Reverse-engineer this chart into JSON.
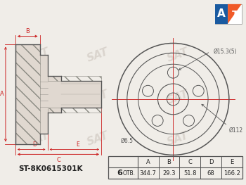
{
  "bg_color": "#f0ede8",
  "title_part_number": "ST-8K0615301K",
  "holes_label": "6 ОТВ.",
  "col_headers": [
    "A",
    "B",
    "C",
    "D",
    "E"
  ],
  "col_values": [
    "344.7",
    "29.3",
    "51.8",
    "68",
    "166.2"
  ],
  "dim_labels": {
    "bolt_circle": "Ø112",
    "center_hole": "Ø6.5",
    "outer_bolt": "Ø15.3(5)"
  },
  "watermark": "SAT",
  "line_color": "#555555",
  "dim_color": "#cc2222",
  "table_line_color": "#555555",
  "logo_orange": "#f05a28",
  "logo_blue": "#1a5aa0"
}
